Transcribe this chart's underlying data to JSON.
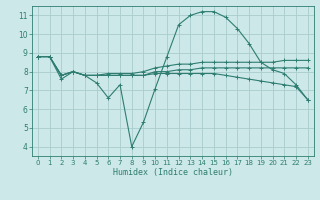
{
  "xlabel": "Humidex (Indice chaleur)",
  "ylabel": "",
  "bg_color": "#cce8e8",
  "grid_color": "#aacccc",
  "line_color": "#2e7d70",
  "xlim": [
    -0.5,
    23.5
  ],
  "ylim": [
    3.5,
    11.5
  ],
  "yticks": [
    4,
    5,
    6,
    7,
    8,
    9,
    10,
    11
  ],
  "xticks": [
    0,
    1,
    2,
    3,
    4,
    5,
    6,
    7,
    8,
    9,
    10,
    11,
    12,
    13,
    14,
    15,
    16,
    17,
    18,
    19,
    20,
    21,
    22,
    23
  ],
  "series": [
    {
      "x": [
        0,
        1,
        2,
        3,
        4,
        5,
        6,
        7,
        8,
        9,
        10,
        11,
        12,
        13,
        14,
        15,
        16,
        17,
        18,
        19,
        20,
        21,
        22,
        23
      ],
      "y": [
        8.8,
        8.8,
        7.6,
        8.0,
        7.8,
        7.4,
        6.6,
        7.3,
        4.0,
        5.3,
        7.1,
        8.8,
        10.5,
        11.0,
        11.2,
        11.2,
        10.9,
        10.3,
        9.5,
        8.5,
        8.1,
        7.9,
        7.3,
        6.5
      ]
    },
    {
      "x": [
        0,
        1,
        2,
        3,
        4,
        5,
        6,
        7,
        8,
        9,
        10,
        11,
        12,
        13,
        14,
        15,
        16,
        17,
        18,
        19,
        20,
        21,
        22,
        23
      ],
      "y": [
        8.8,
        8.8,
        7.8,
        8.0,
        7.8,
        7.8,
        7.9,
        7.9,
        7.9,
        8.0,
        8.2,
        8.3,
        8.4,
        8.4,
        8.5,
        8.5,
        8.5,
        8.5,
        8.5,
        8.5,
        8.5,
        8.6,
        8.6,
        8.6
      ]
    },
    {
      "x": [
        0,
        1,
        2,
        3,
        4,
        5,
        6,
        7,
        8,
        9,
        10,
        11,
        12,
        13,
        14,
        15,
        16,
        17,
        18,
        19,
        20,
        21,
        22,
        23
      ],
      "y": [
        8.8,
        8.8,
        7.8,
        8.0,
        7.8,
        7.8,
        7.8,
        7.8,
        7.8,
        7.8,
        8.0,
        8.0,
        8.1,
        8.1,
        8.2,
        8.2,
        8.2,
        8.2,
        8.2,
        8.2,
        8.2,
        8.2,
        8.2,
        8.2
      ]
    },
    {
      "x": [
        0,
        1,
        2,
        3,
        4,
        5,
        6,
        7,
        8,
        9,
        10,
        11,
        12,
        13,
        14,
        15,
        16,
        17,
        18,
        19,
        20,
        21,
        22,
        23
      ],
      "y": [
        8.8,
        8.8,
        7.8,
        8.0,
        7.8,
        7.8,
        7.8,
        7.8,
        7.8,
        7.8,
        7.9,
        7.9,
        7.9,
        7.9,
        7.9,
        7.9,
        7.8,
        7.7,
        7.6,
        7.5,
        7.4,
        7.3,
        7.2,
        6.5
      ]
    }
  ]
}
